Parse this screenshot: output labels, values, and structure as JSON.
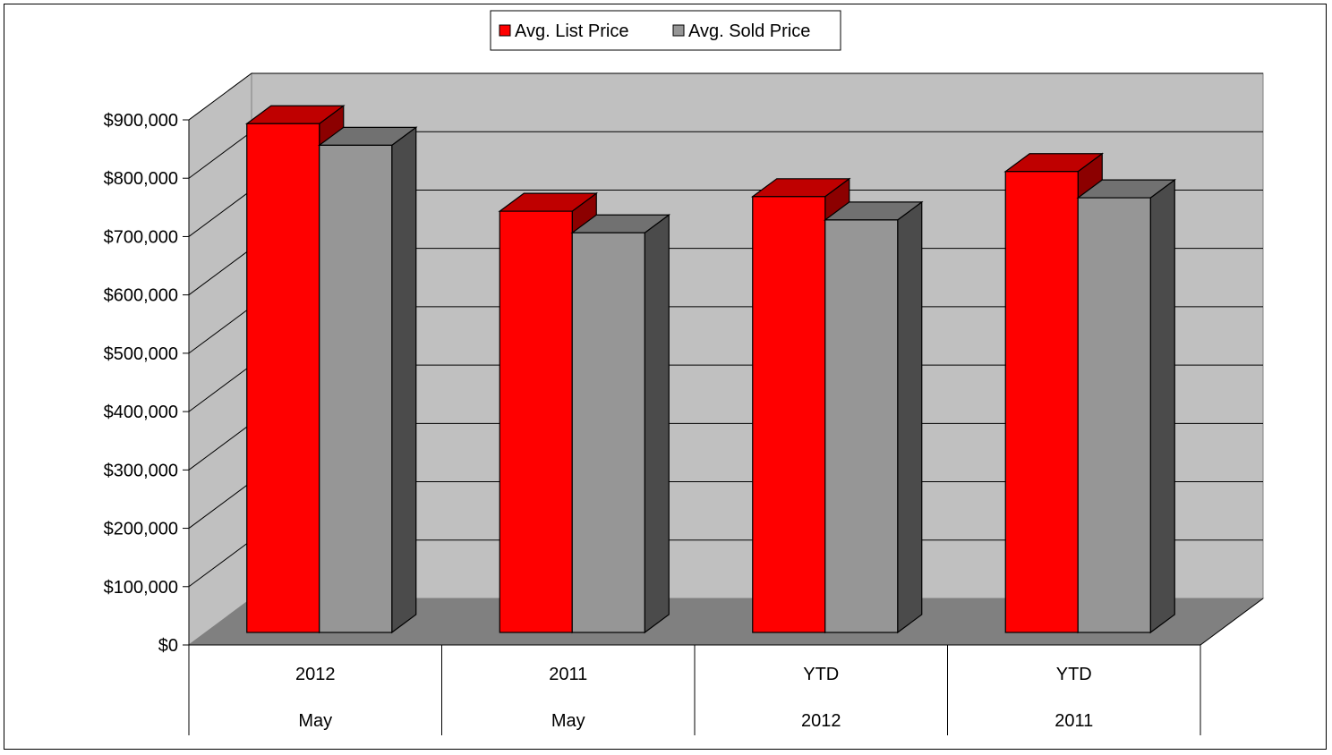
{
  "chart_data": {
    "type": "bar",
    "style": "3d-clustered-column",
    "categories": [
      [
        "2012",
        "May"
      ],
      [
        "2011",
        "May"
      ],
      [
        "YTD",
        "2012"
      ],
      [
        "YTD",
        "2011"
      ]
    ],
    "series": [
      {
        "name": "Avg. List Price",
        "color": "#ff0000",
        "values": [
          872000,
          722000,
          747000,
          790000
        ]
      },
      {
        "name": "Avg. Sold Price",
        "color": "#969696",
        "values": [
          835000,
          685000,
          707000,
          745000
        ]
      }
    ],
    "yticks": [
      "$0",
      "$100,000",
      "$200,000",
      "$300,000",
      "$400,000",
      "$500,000",
      "$600,000",
      "$700,000",
      "$800,000",
      "$900,000"
    ],
    "ylim": [
      0,
      900000
    ],
    "grid": true,
    "legend_position": "top",
    "colors": {
      "back_wall": "#c0c0c0",
      "floor": "#808080",
      "side_wall": "#c0c0c0"
    }
  }
}
